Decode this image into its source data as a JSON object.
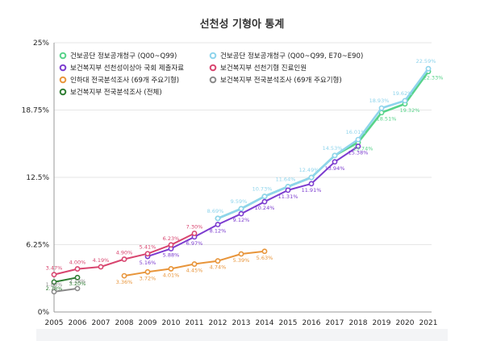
{
  "chart_data": {
    "type": "line",
    "title": "선천성 기형아 통계",
    "x": [
      2005,
      2006,
      2007,
      2008,
      2009,
      2010,
      2011,
      2012,
      2013,
      2014,
      2015,
      2016,
      2017,
      2018,
      2019,
      2020,
      2021
    ],
    "ylim": [
      0,
      25
    ],
    "yticks": [
      {
        "value": 0,
        "label": "0%"
      },
      {
        "value": 6.25,
        "label": "6.25%"
      },
      {
        "value": 12.5,
        "label": "12.5%"
      },
      {
        "value": 18.75,
        "label": "18.75%"
      },
      {
        "value": 25,
        "label": "25%"
      }
    ],
    "series": [
      {
        "name": "건보공단 정보공개청구 (Q00~Q99)",
        "color": "#57d389",
        "points": [
          [
            2012,
            8.69
          ],
          [
            2013,
            9.59
          ],
          [
            2014,
            10.73
          ],
          [
            2015,
            11.64
          ],
          [
            2016,
            12.49
          ],
          [
            2017,
            14.53
          ],
          [
            2018,
            15.74
          ],
          [
            2019,
            18.51
          ],
          [
            2020,
            19.32
          ],
          [
            2021,
            22.33
          ]
        ],
        "labels": [
          "",
          "",
          "",
          "",
          "",
          "",
          "15.74%",
          "18.51%",
          "19.32%",
          "22.33%"
        ]
      },
      {
        "name": "건보공단 정보공개청구 (Q00~Q99, E70~E90)",
        "color": "#8ed4ec",
        "points": [
          [
            2012,
            8.69
          ],
          [
            2013,
            9.59
          ],
          [
            2014,
            10.73
          ],
          [
            2015,
            11.64
          ],
          [
            2016,
            12.49
          ],
          [
            2017,
            14.53
          ],
          [
            2018,
            16.01
          ],
          [
            2019,
            18.93
          ],
          [
            2020,
            19.62
          ],
          [
            2021,
            22.59
          ]
        ],
        "labels": [
          "8.69%",
          "9.59%",
          "10.73%",
          "11.64%",
          "12.49%",
          "14.53%",
          "16.01%",
          "18.93%",
          "19.62%",
          "22.59%"
        ]
      },
      {
        "name": "보건복지부 선천성이상아 국회 제출자료",
        "color": "#7c3ccf",
        "points": [
          [
            2009,
            5.16
          ],
          [
            2010,
            5.88
          ],
          [
            2011,
            6.97
          ],
          [
            2012,
            8.12
          ],
          [
            2013,
            9.12
          ],
          [
            2014,
            10.24
          ],
          [
            2015,
            11.31
          ],
          [
            2016,
            11.91
          ],
          [
            2017,
            13.94
          ],
          [
            2018,
            15.38
          ]
        ],
        "labels": [
          "5.16%",
          "5.88%",
          "6.97%",
          "8.12%",
          "9.12%",
          "10.24%",
          "11.31%",
          "11.91%",
          "13.94%",
          "15.38%"
        ]
      },
      {
        "name": "보건복지부 선천기형 진료인원",
        "color": "#d8456f",
        "points": [
          [
            2005,
            3.47
          ],
          [
            2006,
            4.0
          ],
          [
            2007,
            4.19
          ],
          [
            2008,
            4.9
          ],
          [
            2009,
            5.41
          ],
          [
            2010,
            6.23
          ],
          [
            2011,
            7.3
          ]
        ],
        "labels": [
          "3.47%",
          "4.00%",
          "4.19%",
          "4.90%",
          "5.41%",
          "6.23%",
          "7.30%"
        ]
      },
      {
        "name": "인하대 전국분석조사 (69개 주요기형)",
        "color": "#e8953a",
        "points": [
          [
            2008,
            3.36
          ],
          [
            2009,
            3.72
          ],
          [
            2010,
            4.01
          ],
          [
            2011,
            4.45
          ],
          [
            2012,
            4.74
          ],
          [
            2013,
            5.39
          ],
          [
            2014,
            5.63
          ]
        ],
        "labels": [
          "3.36%",
          "3.72%",
          "4.01%",
          "4.45%",
          "4.74%",
          "5.39%",
          "5.63%"
        ]
      },
      {
        "name": "보건복지부 전국분석조사 (69개 주요기형)",
        "color": "#8a8a8a",
        "points": [
          [
            2005,
            1.88
          ],
          [
            2006,
            2.18
          ]
        ],
        "labels": [
          "1.88%",
          "2.18%"
        ]
      },
      {
        "name": "보건복지부 전국분석조사 (전체)",
        "color": "#2e7d32",
        "points": [
          [
            2005,
            2.78
          ],
          [
            2006,
            3.2
          ]
        ],
        "labels": [
          "2.78%",
          "3.20%"
        ]
      }
    ],
    "legend_position": "top-left"
  }
}
